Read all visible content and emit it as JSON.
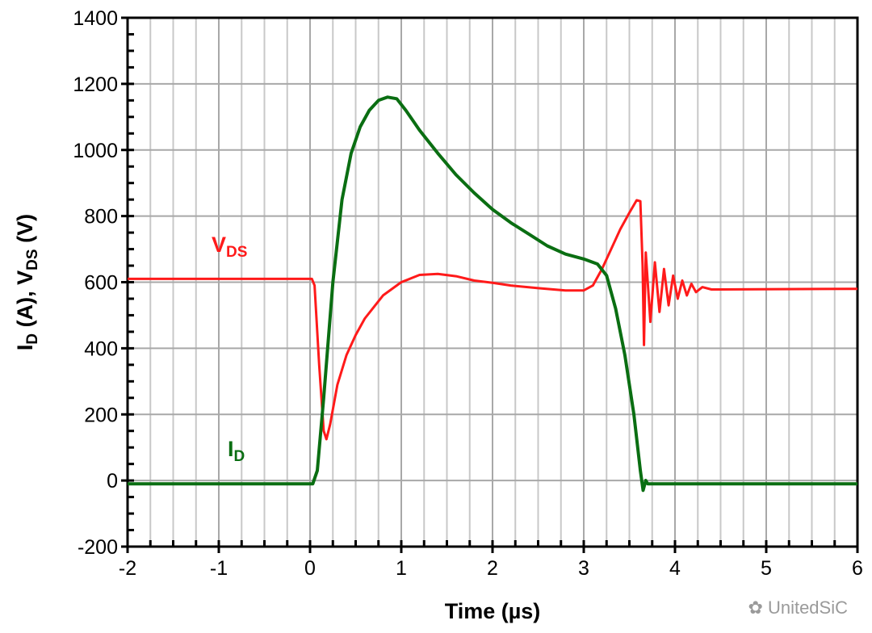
{
  "chart_data": {
    "type": "line",
    "title": "",
    "xlabel": "Time (µs)",
    "ylabel_parts": {
      "i": "I",
      "i_sub": "D",
      "mid": " (A), V",
      "v_sub": "DS",
      "end": " (V)"
    },
    "xlim": [
      -2,
      6
    ],
    "ylim": [
      -200,
      1400
    ],
    "xticks": [
      -2,
      -1,
      0,
      1,
      2,
      3,
      4,
      5,
      6
    ],
    "yticks": [
      -200,
      0,
      200,
      400,
      600,
      800,
      1000,
      1200,
      1400
    ],
    "grid": true,
    "series": [
      {
        "name": "VDS",
        "label_main": "V",
        "label_sub": "DS",
        "color": "#ff1a1a",
        "points": [
          [
            -2,
            610
          ],
          [
            0.02,
            610
          ],
          [
            0.05,
            590
          ],
          [
            0.1,
            350
          ],
          [
            0.15,
            150
          ],
          [
            0.18,
            125
          ],
          [
            0.22,
            170
          ],
          [
            0.3,
            290
          ],
          [
            0.4,
            380
          ],
          [
            0.5,
            440
          ],
          [
            0.6,
            490
          ],
          [
            0.8,
            560
          ],
          [
            1.0,
            600
          ],
          [
            1.2,
            622
          ],
          [
            1.4,
            625
          ],
          [
            1.6,
            618
          ],
          [
            1.8,
            605
          ],
          [
            2.0,
            598
          ],
          [
            2.2,
            590
          ],
          [
            2.5,
            582
          ],
          [
            2.8,
            575
          ],
          [
            3.0,
            575
          ],
          [
            3.1,
            590
          ],
          [
            3.2,
            640
          ],
          [
            3.3,
            700
          ],
          [
            3.4,
            760
          ],
          [
            3.5,
            810
          ],
          [
            3.58,
            848
          ],
          [
            3.62,
            845
          ],
          [
            3.645,
            650
          ],
          [
            3.66,
            410
          ],
          [
            3.68,
            690
          ],
          [
            3.73,
            480
          ],
          [
            3.78,
            660
          ],
          [
            3.83,
            510
          ],
          [
            3.88,
            640
          ],
          [
            3.93,
            530
          ],
          [
            3.98,
            620
          ],
          [
            4.03,
            550
          ],
          [
            4.08,
            605
          ],
          [
            4.13,
            560
          ],
          [
            4.18,
            595
          ],
          [
            4.23,
            570
          ],
          [
            4.3,
            585
          ],
          [
            4.4,
            578
          ],
          [
            6,
            580
          ]
        ]
      },
      {
        "name": "ID",
        "label_main": "I",
        "label_sub": "D",
        "color": "#0a6e12",
        "points": [
          [
            -2,
            -10
          ],
          [
            0.03,
            -10
          ],
          [
            0.08,
            30
          ],
          [
            0.15,
            250
          ],
          [
            0.25,
            600
          ],
          [
            0.35,
            850
          ],
          [
            0.45,
            990
          ],
          [
            0.55,
            1070
          ],
          [
            0.65,
            1120
          ],
          [
            0.75,
            1150
          ],
          [
            0.85,
            1160
          ],
          [
            0.95,
            1155
          ],
          [
            1.05,
            1120
          ],
          [
            1.2,
            1060
          ],
          [
            1.4,
            990
          ],
          [
            1.6,
            925
          ],
          [
            1.8,
            870
          ],
          [
            2.0,
            820
          ],
          [
            2.2,
            780
          ],
          [
            2.4,
            745
          ],
          [
            2.6,
            710
          ],
          [
            2.8,
            685
          ],
          [
            3.0,
            670
          ],
          [
            3.15,
            655
          ],
          [
            3.25,
            620
          ],
          [
            3.35,
            520
          ],
          [
            3.45,
            380
          ],
          [
            3.55,
            200
          ],
          [
            3.62,
            30
          ],
          [
            3.65,
            -30
          ],
          [
            3.68,
            0
          ],
          [
            3.7,
            -10
          ],
          [
            6,
            -10
          ]
        ]
      }
    ]
  },
  "watermark": "UnitedSiC"
}
